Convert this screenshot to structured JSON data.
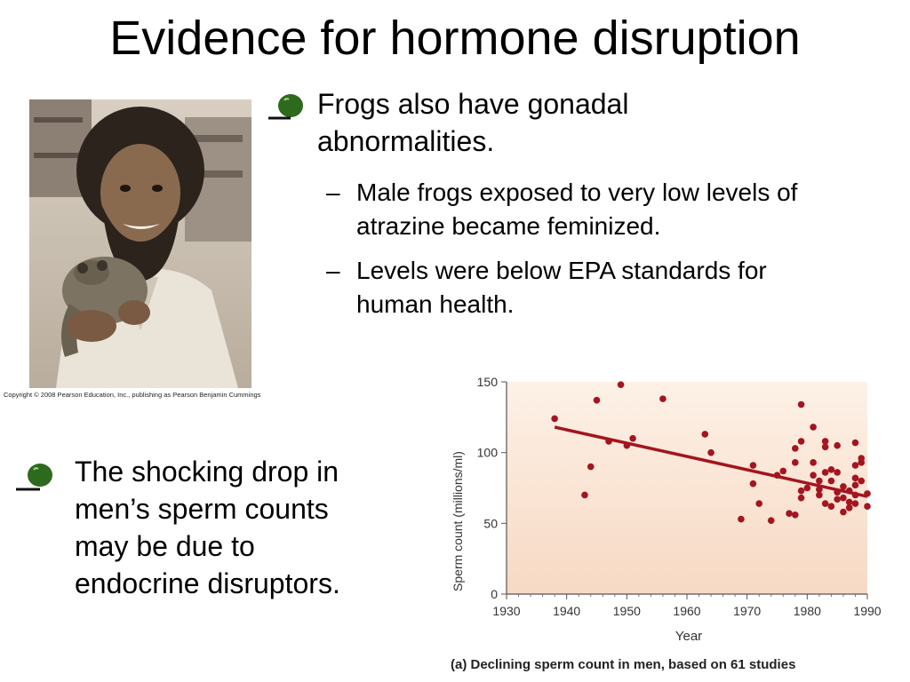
{
  "slide": {
    "title": "Evidence for hormone disruption",
    "photo_caption": "Copyright © 2008 Pearson Education, Inc., publishing as Pearson Benjamin Cummings",
    "bullet1": {
      "lines": [
        "Frogs also have gonadal",
        "abnormalities."
      ],
      "subs": [
        {
          "dash": "–",
          "lines": [
            "Male frogs exposed to very low levels of",
            "atrazine became feminized."
          ]
        },
        {
          "dash": "–",
          "lines": [
            "Levels were below EPA standards for",
            "human health."
          ]
        }
      ]
    },
    "bullet2": {
      "lines": [
        "The shocking drop in",
        "men’s sperm counts",
        "may be due to",
        "endocrine disruptors."
      ]
    },
    "bullet_icon": "green-blob-bullet-icon",
    "colors": {
      "bullet": "#2d6a1e",
      "data": "#a3151f",
      "plot_bg_top": "#fbe8d6"
    }
  },
  "chart_data": {
    "type": "scatter",
    "title": "(a) Declining sperm count in men, based on 61 studies",
    "xlabel": "Year",
    "ylabel": "Sperm count (millions/ml)",
    "xlim": [
      1930,
      1990
    ],
    "ylim": [
      0,
      150
    ],
    "xticks": [
      "1930",
      "1940",
      "1950",
      "1960",
      "1970",
      "1980",
      "1990"
    ],
    "yticks": [
      "0",
      "50",
      "100",
      "150"
    ],
    "trendline": {
      "x": [
        1938,
        1990
      ],
      "y": [
        118,
        69
      ]
    },
    "points": [
      {
        "x": 1938,
        "y": 124
      },
      {
        "x": 1943,
        "y": 70
      },
      {
        "x": 1944,
        "y": 90
      },
      {
        "x": 1945,
        "y": 137
      },
      {
        "x": 1947,
        "y": 108
      },
      {
        "x": 1949,
        "y": 148
      },
      {
        "x": 1950,
        "y": 105
      },
      {
        "x": 1951,
        "y": 110
      },
      {
        "x": 1956,
        "y": 138
      },
      {
        "x": 1963,
        "y": 113
      },
      {
        "x": 1964,
        "y": 100
      },
      {
        "x": 1969,
        "y": 53
      },
      {
        "x": 1971,
        "y": 91
      },
      {
        "x": 1971,
        "y": 78
      },
      {
        "x": 1972,
        "y": 64
      },
      {
        "x": 1974,
        "y": 52
      },
      {
        "x": 1975,
        "y": 84
      },
      {
        "x": 1976,
        "y": 87
      },
      {
        "x": 1977,
        "y": 57
      },
      {
        "x": 1978,
        "y": 56
      },
      {
        "x": 1978,
        "y": 93
      },
      {
        "x": 1978,
        "y": 103
      },
      {
        "x": 1979,
        "y": 134
      },
      {
        "x": 1979,
        "y": 108
      },
      {
        "x": 1979,
        "y": 73
      },
      {
        "x": 1979,
        "y": 68
      },
      {
        "x": 1980,
        "y": 75
      },
      {
        "x": 1981,
        "y": 118
      },
      {
        "x": 1981,
        "y": 93
      },
      {
        "x": 1981,
        "y": 84
      },
      {
        "x": 1982,
        "y": 80
      },
      {
        "x": 1982,
        "y": 74
      },
      {
        "x": 1982,
        "y": 70
      },
      {
        "x": 1983,
        "y": 108
      },
      {
        "x": 1983,
        "y": 104
      },
      {
        "x": 1983,
        "y": 86
      },
      {
        "x": 1983,
        "y": 64
      },
      {
        "x": 1984,
        "y": 88
      },
      {
        "x": 1984,
        "y": 80
      },
      {
        "x": 1984,
        "y": 62
      },
      {
        "x": 1985,
        "y": 105
      },
      {
        "x": 1985,
        "y": 86
      },
      {
        "x": 1985,
        "y": 72
      },
      {
        "x": 1985,
        "y": 67
      },
      {
        "x": 1986,
        "y": 76
      },
      {
        "x": 1986,
        "y": 68
      },
      {
        "x": 1986,
        "y": 58
      },
      {
        "x": 1987,
        "y": 73
      },
      {
        "x": 1987,
        "y": 65
      },
      {
        "x": 1987,
        "y": 61
      },
      {
        "x": 1988,
        "y": 107
      },
      {
        "x": 1988,
        "y": 91
      },
      {
        "x": 1988,
        "y": 82
      },
      {
        "x": 1988,
        "y": 77
      },
      {
        "x": 1988,
        "y": 70
      },
      {
        "x": 1988,
        "y": 64
      },
      {
        "x": 1989,
        "y": 96
      },
      {
        "x": 1989,
        "y": 93
      },
      {
        "x": 1989,
        "y": 80
      },
      {
        "x": 1990,
        "y": 62
      },
      {
        "x": 1990,
        "y": 71
      }
    ]
  }
}
